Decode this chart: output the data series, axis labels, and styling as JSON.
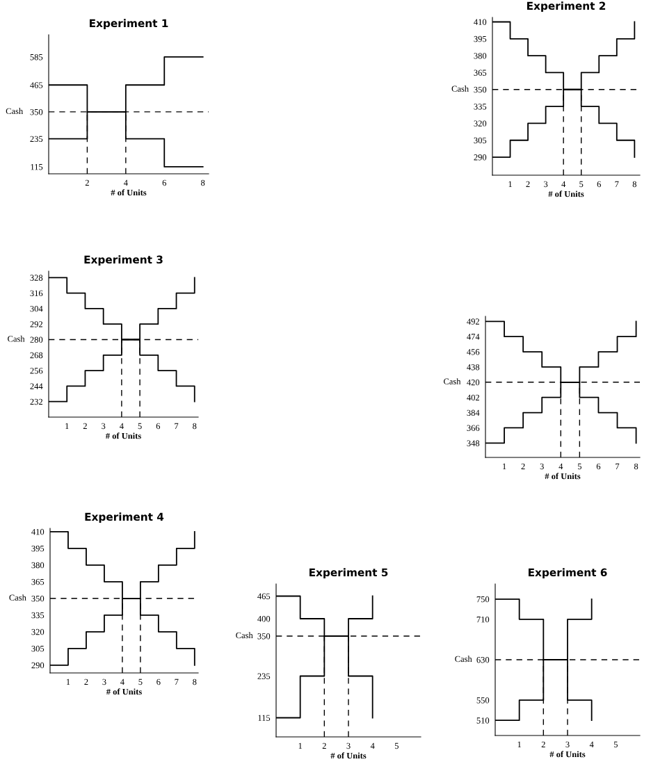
{
  "chart_data": [
    {
      "type": "step",
      "title": "Experiment 1",
      "xlabel": "# of Units",
      "ylabel": "Cash",
      "x": [
        0,
        2,
        4,
        6,
        8
      ],
      "xlim": [
        0,
        8.3
      ],
      "xticks": [
        2,
        4,
        6,
        8
      ],
      "ylim": [
        85,
        680
      ],
      "yticks": [
        115,
        235,
        350,
        465,
        585
      ],
      "grid": false,
      "legend": false,
      "line_style": "solid",
      "series": [
        {
          "color": "#000000",
          "values": [
            465,
            350,
            235,
            115,
            115
          ]
        },
        {
          "color": "#000000",
          "values": [
            235,
            350,
            465,
            585,
            585
          ]
        }
      ],
      "ref_lines": [
        {
          "axis": "y",
          "value": 350,
          "line_style": "dashed"
        },
        {
          "axis": "x",
          "value": 2,
          "line_style": "dashed"
        },
        {
          "axis": "x",
          "value": 4,
          "line_style": "dashed"
        }
      ]
    },
    {
      "type": "step",
      "title": "Experiment 2",
      "xlabel": "# of Units",
      "ylabel": "Cash",
      "x": [
        0,
        1,
        2,
        3,
        4,
        5,
        6,
        7,
        8
      ],
      "xlim": [
        0,
        8.3
      ],
      "xticks": [
        1,
        2,
        3,
        4,
        5,
        6,
        7,
        8
      ],
      "ylim": [
        274,
        414
      ],
      "yticks": [
        290,
        305,
        320,
        335,
        350,
        365,
        380,
        395,
        410
      ],
      "grid": false,
      "legend": false,
      "line_style": "solid",
      "series": [
        {
          "color": "#000000",
          "values": [
            410,
            395,
            380,
            365,
            350,
            335,
            320,
            305,
            290
          ]
        },
        {
          "color": "#000000",
          "values": [
            290,
            305,
            320,
            335,
            350,
            365,
            380,
            395,
            410
          ]
        }
      ],
      "ref_lines": [
        {
          "axis": "y",
          "value": 350,
          "line_style": "dashed"
        },
        {
          "axis": "x",
          "value": 4,
          "line_style": "dashed"
        },
        {
          "axis": "x",
          "value": 5,
          "line_style": "dashed"
        }
      ]
    },
    {
      "type": "step",
      "title": "Experiment 3",
      "xlabel": "# of Units",
      "ylabel": "Cash",
      "x": [
        0,
        1,
        2,
        3,
        4,
        5,
        6,
        7,
        8
      ],
      "xlim": [
        0,
        8.2
      ],
      "xticks": [
        1,
        2,
        3,
        4,
        5,
        6,
        7,
        8
      ],
      "ylim": [
        220,
        333
      ],
      "yticks": [
        232,
        244,
        256,
        268,
        280,
        292,
        304,
        316,
        328
      ],
      "grid": false,
      "legend": false,
      "line_style": "solid",
      "series": [
        {
          "color": "#000000",
          "values": [
            328,
            316,
            304,
            292,
            280,
            268,
            256,
            244,
            232
          ]
        },
        {
          "color": "#000000",
          "values": [
            232,
            244,
            256,
            268,
            280,
            292,
            304,
            316,
            328
          ]
        }
      ],
      "ref_lines": [
        {
          "axis": "y",
          "value": 280,
          "line_style": "dashed"
        },
        {
          "axis": "x",
          "value": 4,
          "line_style": "dashed"
        },
        {
          "axis": "x",
          "value": 5,
          "line_style": "dashed"
        }
      ]
    },
    {
      "type": "step",
      "xlabel": "# of Units",
      "ylabel": "Cash",
      "x": [
        0,
        1,
        2,
        3,
        4,
        5,
        6,
        7,
        8
      ],
      "xlim": [
        0,
        8.2
      ],
      "xticks": [
        1,
        2,
        3,
        4,
        5,
        6,
        7,
        8
      ],
      "ylim": [
        331,
        498
      ],
      "yticks": [
        348,
        366,
        384,
        402,
        420,
        438,
        456,
        474,
        492
      ],
      "grid": false,
      "legend": false,
      "line_style": "solid",
      "series": [
        {
          "color": "#000000",
          "values": [
            492,
            474,
            456,
            438,
            420,
            402,
            384,
            366,
            348
          ]
        },
        {
          "color": "#000000",
          "values": [
            348,
            366,
            384,
            402,
            420,
            438,
            456,
            474,
            492
          ]
        }
      ],
      "ref_lines": [
        {
          "axis": "y",
          "value": 420,
          "line_style": "dashed"
        },
        {
          "axis": "x",
          "value": 4,
          "line_style": "dashed"
        },
        {
          "axis": "x",
          "value": 5,
          "line_style": "dashed"
        }
      ]
    },
    {
      "type": "step",
      "title": "Experiment 4",
      "xlabel": "# of Units",
      "ylabel": "Cash",
      "x": [
        0,
        1,
        2,
        3,
        4,
        5,
        6,
        7,
        8
      ],
      "xlim": [
        0,
        8.2
      ],
      "xticks": [
        1,
        2,
        3,
        4,
        5,
        6,
        7,
        8
      ],
      "ylim": [
        283,
        413
      ],
      "yticks": [
        290,
        305,
        320,
        335,
        350,
        365,
        380,
        395,
        410
      ],
      "grid": false,
      "legend": false,
      "line_style": "solid",
      "series": [
        {
          "color": "#000000",
          "values": [
            410,
            395,
            380,
            365,
            350,
            335,
            320,
            305,
            290
          ]
        },
        {
          "color": "#000000",
          "values": [
            290,
            305,
            320,
            335,
            350,
            365,
            380,
            395,
            410
          ]
        }
      ],
      "ref_lines": [
        {
          "axis": "y",
          "value": 350,
          "line_style": "dashed"
        },
        {
          "axis": "x",
          "value": 4,
          "line_style": "dashed"
        },
        {
          "axis": "x",
          "value": 5,
          "line_style": "dashed"
        }
      ]
    },
    {
      "type": "step",
      "title": "Experiment 5",
      "xlabel": "# of Units",
      "ylabel": "Cash",
      "x": [
        0,
        1,
        2,
        3,
        4
      ],
      "xlim": [
        0,
        6
      ],
      "xticks": [
        1,
        2,
        3,
        4,
        5
      ],
      "ylim": [
        60,
        500
      ],
      "yticks": [
        115,
        235,
        350,
        400,
        465
      ],
      "grid": false,
      "legend": false,
      "line_style": "solid",
      "series": [
        {
          "color": "#000000",
          "values": [
            465,
            400,
            350,
            235,
            115
          ]
        },
        {
          "color": "#000000",
          "values": [
            115,
            235,
            350,
            400,
            465
          ]
        }
      ],
      "ref_lines": [
        {
          "axis": "y",
          "value": 350,
          "line_style": "dashed"
        },
        {
          "axis": "x",
          "value": 2,
          "line_style": "dashed"
        },
        {
          "axis": "x",
          "value": 3,
          "line_style": "dashed"
        }
      ]
    },
    {
      "type": "step",
      "title": "Experiment 6",
      "xlabel": "# of Units",
      "ylabel": "Cash",
      "x": [
        0,
        1,
        2,
        3,
        4
      ],
      "xlim": [
        0,
        6
      ],
      "xticks": [
        1,
        2,
        3,
        4,
        5
      ],
      "ylim": [
        480,
        780
      ],
      "yticks": [
        510,
        550,
        630,
        710,
        750
      ],
      "grid": false,
      "legend": false,
      "line_style": "solid",
      "series": [
        {
          "color": "#000000",
          "values": [
            750,
            710,
            630,
            550,
            510
          ]
        },
        {
          "color": "#000000",
          "values": [
            510,
            550,
            630,
            710,
            750
          ]
        }
      ],
      "ref_lines": [
        {
          "axis": "y",
          "value": 630,
          "line_style": "dashed"
        },
        {
          "axis": "x",
          "value": 2,
          "line_style": "dashed"
        },
        {
          "axis": "x",
          "value": 3,
          "line_style": "dashed"
        }
      ]
    }
  ]
}
